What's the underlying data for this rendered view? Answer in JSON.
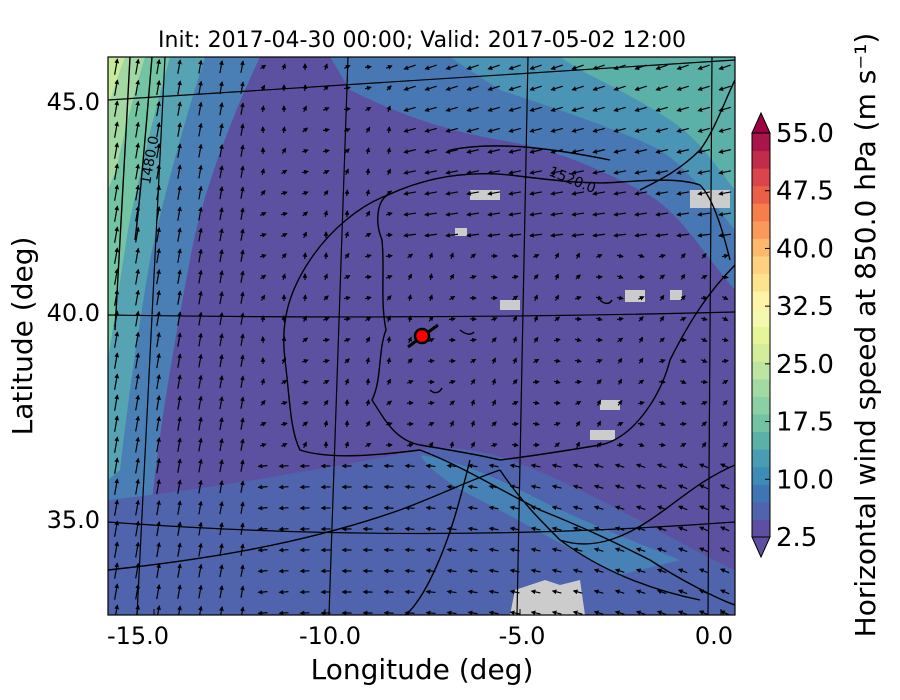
{
  "title": "Init: 2017-04-30 00:00; Valid: 2017-05-02 12:00",
  "axes": {
    "xlabel": "Longitude (deg)",
    "ylabel": "Latitude (deg)",
    "xticks": [
      "-15.0",
      "-10.0",
      "-5.0",
      "0.0"
    ],
    "yticks": [
      "45.0",
      "40.0",
      "35.0"
    ],
    "xlim": [
      -16,
      0.2
    ],
    "ylim": [
      32.8,
      46.2
    ]
  },
  "contours": [
    {
      "label": "1480.0"
    },
    {
      "label": "1520.0"
    }
  ],
  "marker": {
    "lon": -7.7,
    "lat": 39.3,
    "color": "#ff0000"
  },
  "colorbar": {
    "label": "Horizontal wind speed at 850.0 hPa (m s⁻¹)",
    "min": 2.5,
    "max": 55.0,
    "step": 2.5,
    "ticks": [
      "55.0",
      "47.5",
      "40.0",
      "32.5",
      "25.0",
      "17.5",
      "10.0",
      "2.5"
    ],
    "colors": [
      "#5e4fa2",
      "#4f64ad",
      "#4075b4",
      "#3e8bb6",
      "#489db3",
      "#5bb0a8",
      "#71c3a4",
      "#8bcfa4",
      "#a3d9a3",
      "#bde5a0",
      "#d2ed9b",
      "#e6f598",
      "#f5f9b0",
      "#fff3a8",
      "#fee38f",
      "#fdd17f",
      "#fdb96b",
      "#fa9a5a",
      "#f67e4b",
      "#ea6046",
      "#d9444d",
      "#c12c4a",
      "#a7154a"
    ],
    "extend_min_color": "#5e4fa2",
    "extend_max_color": "#9e0142"
  }
}
